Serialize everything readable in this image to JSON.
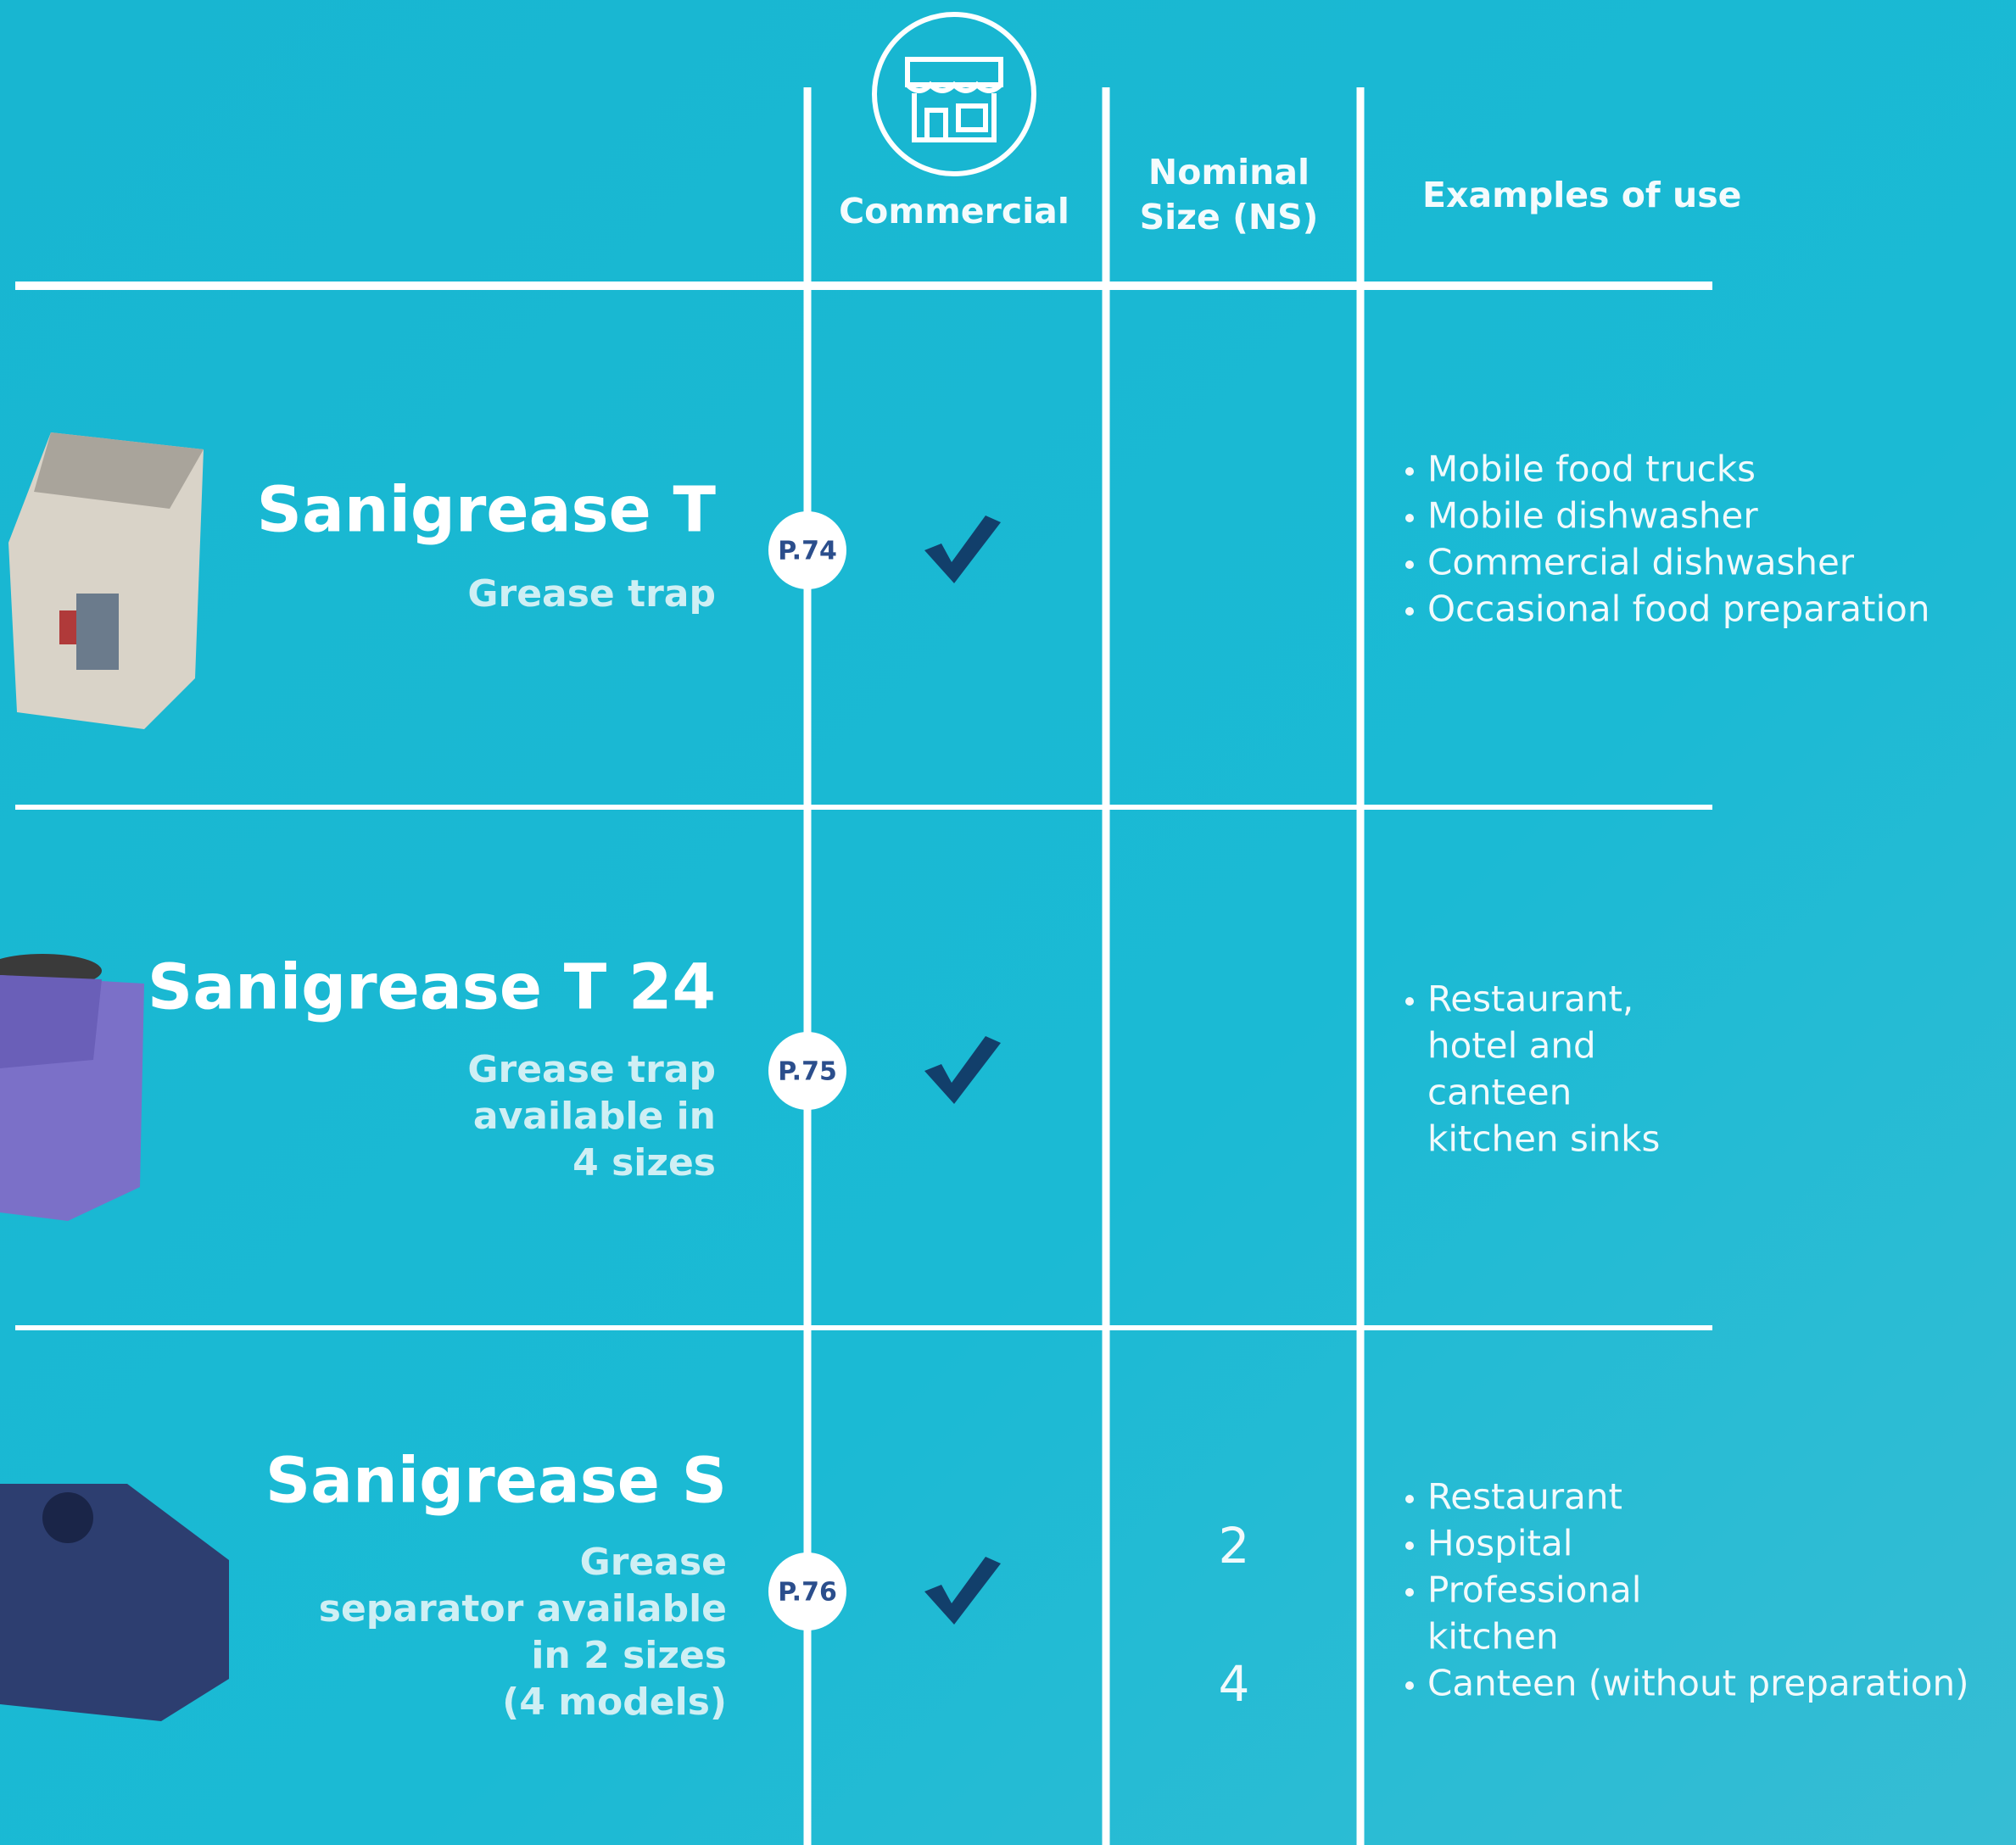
{
  "header": {
    "columns": [
      [
        "Commercial"
      ],
      [
        "Nominal",
        "Size (NS)"
      ],
      [
        "Examples of use"
      ]
    ]
  },
  "rows": [
    {
      "name": "Sanigrease T",
      "description": [
        "Grease trap"
      ],
      "page": "P.74",
      "examples": [
        [
          "Mobile food trucks"
        ],
        [
          "Mobile dishwasher"
        ],
        [
          "Commercial dishwasher"
        ],
        [
          "Occasional food preparation"
        ]
      ]
    },
    {
      "name": "Sanigrease T 24",
      "description": [
        "Grease trap",
        "available in",
        "4 sizes"
      ],
      "page": "P.75",
      "examples": [
        [
          "Restaurant,",
          "hotel and",
          "canteen",
          "kitchen sinks"
        ]
      ]
    },
    {
      "name": "Sanigrease S",
      "description": [
        "Grease",
        "separator available",
        "in 2 sizes",
        "(4 models)"
      ],
      "page": "P.76",
      "nominal_size": [
        2,
        4
      ],
      "examples": [
        [
          "Restaurant"
        ],
        [
          "Hospital"
        ],
        [
          "Professional",
          "kitchen"
        ],
        [
          "Canteen (without preparation)"
        ]
      ]
    }
  ]
}
